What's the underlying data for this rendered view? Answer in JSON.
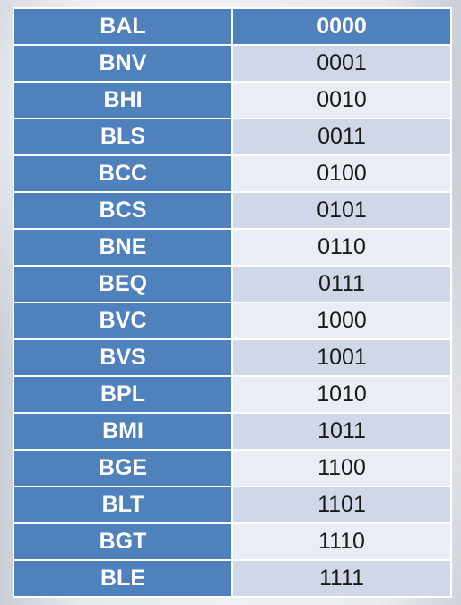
{
  "table": {
    "header": {
      "mnemonic": "BAL",
      "code": "0000"
    },
    "rows": [
      {
        "mnemonic": "BNV",
        "code": "0001"
      },
      {
        "mnemonic": "BHI",
        "code": "0010"
      },
      {
        "mnemonic": "BLS",
        "code": "0011"
      },
      {
        "mnemonic": "BCC",
        "code": "0100"
      },
      {
        "mnemonic": "BCS",
        "code": "0101"
      },
      {
        "mnemonic": "BNE",
        "code": "0110"
      },
      {
        "mnemonic": "BEQ",
        "code": "0111"
      },
      {
        "mnemonic": "BVC",
        "code": "1000"
      },
      {
        "mnemonic": "BVS",
        "code": "1001"
      },
      {
        "mnemonic": "BPL",
        "code": "1010"
      },
      {
        "mnemonic": "BMI",
        "code": "1011"
      },
      {
        "mnemonic": "BGE",
        "code": "1100"
      },
      {
        "mnemonic": "BLT",
        "code": "1101"
      },
      {
        "mnemonic": "BGT",
        "code": "1110"
      },
      {
        "mnemonic": "BLE",
        "code": "1111"
      }
    ]
  },
  "colors": {
    "header_fill": "#4f81bd",
    "row_band_dark": "#d0d8e8",
    "row_band_light": "#e9edf4",
    "header_text": "#ffffff"
  }
}
